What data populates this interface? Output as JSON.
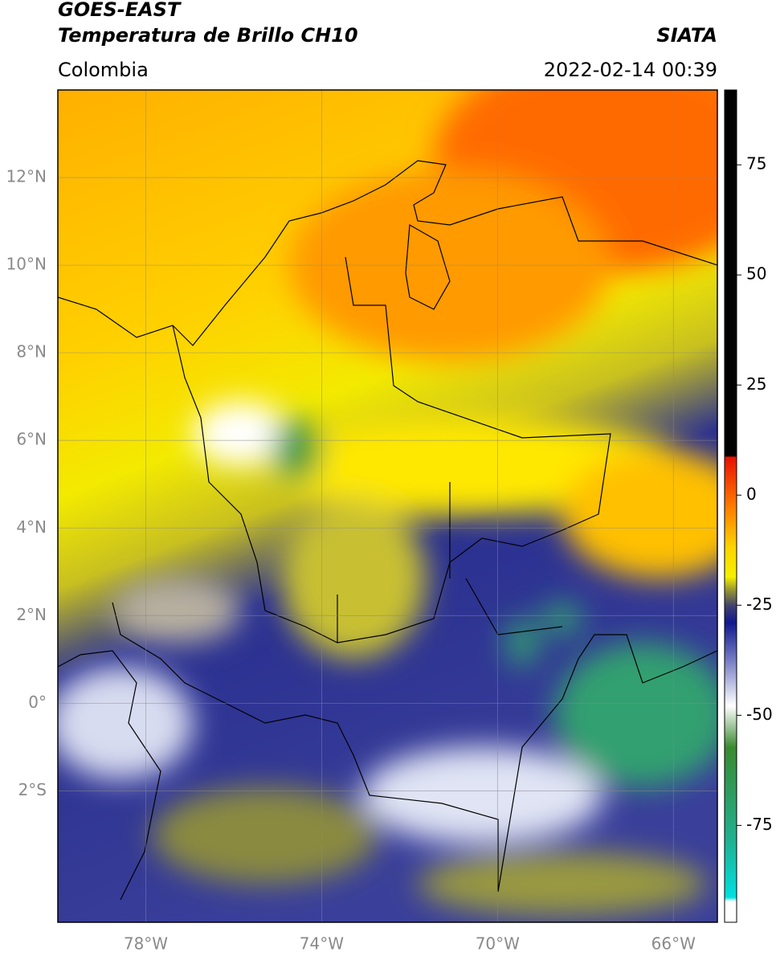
{
  "header": {
    "title": "GOES-EAST",
    "subtitle": "Temperatura de Brillo CH10",
    "region": "Colombia",
    "source": "SIATA",
    "datetime": "2022-02-14 00:39"
  },
  "map": {
    "lonlim": [
      -80,
      -65
    ],
    "latlim": [
      -5,
      14
    ],
    "lon_ticks": [
      {
        "value": -78,
        "label": "78°W"
      },
      {
        "value": -74,
        "label": "74°W"
      },
      {
        "value": -70,
        "label": "70°W"
      },
      {
        "value": -66,
        "label": "66°W"
      }
    ],
    "lat_ticks": [
      {
        "value": 12,
        "label": "12°N"
      },
      {
        "value": 10,
        "label": "10°N"
      },
      {
        "value": 8,
        "label": "8°N"
      },
      {
        "value": 6,
        "label": "6°N"
      },
      {
        "value": 4,
        "label": "4°N"
      },
      {
        "value": 2,
        "label": "2°N"
      },
      {
        "value": 0,
        "label": "0°"
      },
      {
        "value": -2,
        "label": "2°S"
      }
    ]
  },
  "colorbar": {
    "lim": [
      -97,
      92
    ],
    "ticks": [
      75,
      50,
      25,
      0,
      -25,
      -50,
      -75
    ]
  }
}
